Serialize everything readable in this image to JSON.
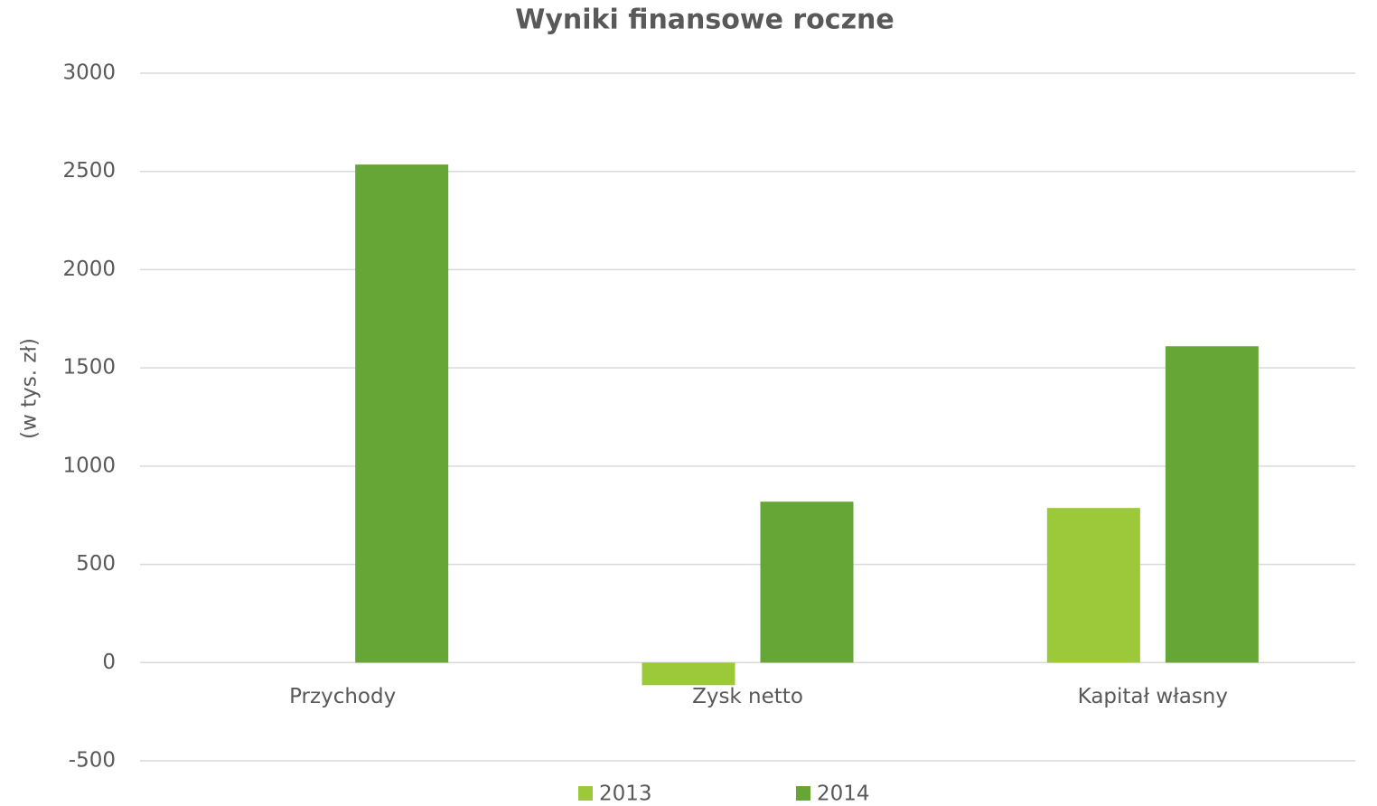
{
  "chart_data": {
    "type": "bar",
    "title": "Wyniki finansowe roczne",
    "y_label": "(w tys. zł)",
    "categories": [
      "Przychody",
      "Zysk netto",
      "Kapitał własny"
    ],
    "series": [
      {
        "name": "2013",
        "color": "#9bc93a",
        "values": [
          0,
          -115,
          787
        ]
      },
      {
        "name": "2014",
        "color": "#65a637",
        "values": [
          2535,
          819,
          1610
        ]
      }
    ],
    "ylim": [
      -500,
      3000
    ],
    "yticks": [
      -500,
      0,
      500,
      1000,
      1500,
      2000,
      2500,
      3000
    ],
    "grid": true,
    "legend": "bottom"
  }
}
